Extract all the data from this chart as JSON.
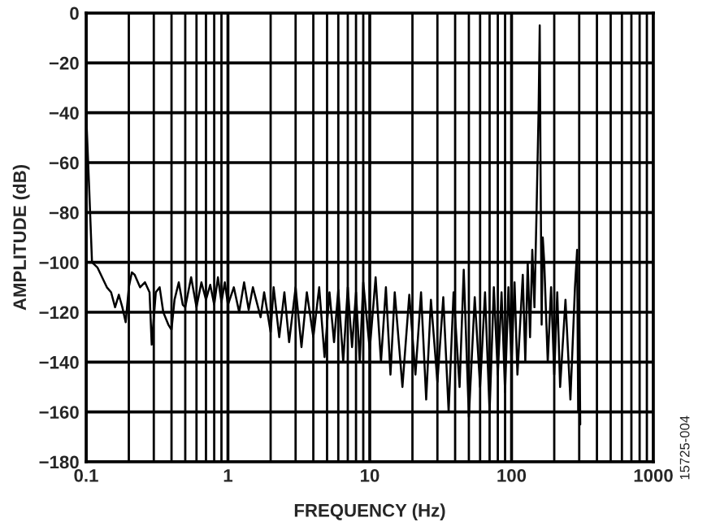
{
  "chart_data": {
    "type": "line",
    "xlabel": "FREQUENCY (Hz)",
    "ylabel": "AMPLITUDE (dB)",
    "log": "x",
    "grid": true,
    "marker": "none",
    "line_style": "solid",
    "xlim": [
      0.1,
      1000
    ],
    "xticks": [
      0.1,
      1,
      10,
      100,
      1000
    ],
    "ylim": [
      -180,
      0
    ],
    "yticks": [
      {
        "value": 0,
        "label": "0"
      },
      {
        "value": -20,
        "label": "−20"
      },
      {
        "value": -40,
        "label": "−40"
      },
      {
        "value": -60,
        "label": "−60"
      },
      {
        "value": -80,
        "label": "−80"
      },
      {
        "value": -100,
        "label": "−100"
      },
      {
        "value": -120,
        "label": "−120"
      },
      {
        "value": -140,
        "label": "−140"
      },
      {
        "value": -160,
        "label": "−160"
      },
      {
        "value": -180,
        "label": "−180"
      }
    ],
    "annotations": [
      "15725-004"
    ],
    "series": [
      {
        "color": "#000000",
        "x": [
          0.1,
          0.105,
          0.11,
          0.12,
          0.14,
          0.15,
          0.16,
          0.17,
          0.18,
          0.19,
          0.2,
          0.21,
          0.22,
          0.24,
          0.26,
          0.28,
          0.29,
          0.31,
          0.33,
          0.35,
          0.38,
          0.4,
          0.42,
          0.45,
          0.48,
          0.5,
          0.55,
          0.6,
          0.65,
          0.7,
          0.75,
          0.8,
          0.85,
          0.9,
          0.95,
          1.0,
          1.1,
          1.2,
          1.3,
          1.4,
          1.5,
          1.7,
          1.8,
          2.0,
          2.1,
          2.3,
          2.5,
          2.7,
          3.0,
          3.3,
          3.6,
          4.0,
          4.4,
          4.8,
          5.2,
          5.6,
          6,
          6.5,
          7,
          7.5,
          8,
          8.5,
          9,
          10,
          11,
          12,
          13,
          14,
          15,
          17,
          19,
          21,
          23,
          25,
          27,
          30,
          33,
          36,
          39,
          43,
          46,
          50,
          55,
          60,
          65,
          70,
          75,
          80,
          85,
          90,
          95,
          100,
          105,
          110,
          120,
          125,
          130,
          135,
          140,
          145,
          150,
          155,
          158,
          160,
          163,
          166,
          170,
          180,
          190,
          200,
          210,
          220,
          240,
          260,
          280,
          290,
          295,
          300,
          305
        ],
        "values": [
          -40,
          -70,
          -100,
          -102,
          -110,
          -112,
          -118,
          -113,
          -118,
          -124,
          -110,
          -104,
          -105,
          -110,
          -108,
          -112,
          -133,
          -112,
          -110,
          -120,
          -125,
          -127,
          -115,
          -108,
          -117,
          -118,
          -106,
          -118,
          -108,
          -115,
          -109,
          -117,
          -106,
          -116,
          -108,
          -117,
          -110,
          -120,
          -108,
          -119,
          -110,
          -122,
          -112,
          -128,
          -110,
          -130,
          -112,
          -132,
          -110,
          -134,
          -112,
          -130,
          -110,
          -138,
          -112,
          -132,
          -111,
          -140,
          -110,
          -134,
          -112,
          -140,
          -108,
          -135,
          -106,
          -140,
          -110,
          -145,
          -112,
          -150,
          -113,
          -145,
          -112,
          -155,
          -115,
          -148,
          -114,
          -160,
          -112,
          -150,
          -103,
          -162,
          -114,
          -150,
          -112,
          -160,
          -110,
          -145,
          -112,
          -152,
          -110,
          -140,
          -108,
          -145,
          -105,
          -140,
          -100,
          -130,
          -95,
          -118,
          -80,
          -40,
          -5,
          -60,
          -125,
          -90,
          -100,
          -140,
          -110,
          -145,
          -112,
          -150,
          -115,
          -155,
          -110,
          -95,
          -160,
          -115,
          -165
        ]
      }
    ]
  }
}
